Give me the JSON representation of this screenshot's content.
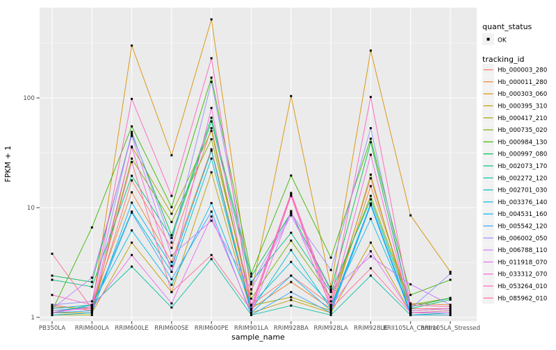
{
  "chart_data": {
    "type": "line",
    "xlabel": "sample_name",
    "ylabel": "FPKM + 1",
    "y_scale": "log10",
    "y_ticks": [
      1,
      10,
      100
    ],
    "y_tick_labels": [
      "1",
      "10",
      "100"
    ],
    "y_minor_breaks": [
      3.1623,
      31.623,
      316.23
    ],
    "ylim": [
      0.93,
      665
    ],
    "grid": "on",
    "legend_position": "right",
    "panel_bg": "#EBEBEB",
    "grid_color": "#FFFFFF",
    "axis_text_color": "#4D4D4D",
    "tick_color": "#333333",
    "point_color": "#000000",
    "categories": [
      "PB350LA",
      "RRIM600LA",
      "RRIM600LE",
      "RRIM600SE",
      "RRIM600PE",
      "RRIM901LA",
      "RRIM928BA",
      "RRIM928LA",
      "RRIM928LE",
      "RRII105LA_Control",
      "RRII105LA_Stressed"
    ],
    "series": [
      {
        "name": "Hb_000003_280",
        "color": "#F8766D",
        "values": [
          1.3,
          1.15,
          17.7,
          4.3,
          53,
          1.3,
          2.4,
          1.3,
          18.5,
          1.2,
          1.2
        ]
      },
      {
        "name": "Hb_000011_280",
        "color": "#EA8331",
        "values": [
          1.2,
          1.3,
          13.8,
          3.2,
          34,
          1.2,
          2.1,
          1.2,
          15.7,
          1.34,
          1.3
        ]
      },
      {
        "name": "Hb_000303_060",
        "color": "#D89000",
        "values": [
          1.25,
          1.2,
          300,
          30,
          520,
          1.64,
          104,
          1.9,
          270,
          8.5,
          2.6
        ]
      },
      {
        "name": "Hb_000395_310",
        "color": "#C09B00",
        "values": [
          1.1,
          1.1,
          4.8,
          1.7,
          21,
          1.1,
          1.44,
          1.1,
          4.8,
          1.1,
          1.1
        ]
      },
      {
        "name": "Hb_000417_210",
        "color": "#A3A500",
        "values": [
          1.05,
          1.05,
          36,
          8.8,
          50,
          1.28,
          1.53,
          1.15,
          20,
          1.05,
          1.05
        ]
      },
      {
        "name": "Hb_000735_020",
        "color": "#7CAE00",
        "values": [
          1.1,
          1.15,
          28,
          7.4,
          42,
          1.48,
          5.0,
          1.53,
          12.8,
          1.3,
          1.5
        ]
      },
      {
        "name": "Hb_000984_130",
        "color": "#39B600",
        "values": [
          1.15,
          6.6,
          55,
          10.1,
          153,
          2.5,
          19.6,
          3.5,
          42.5,
          1.6,
          2.2
        ]
      },
      {
        "name": "Hb_000997_080",
        "color": "#00BB4E",
        "values": [
          2.4,
          2.1,
          47,
          5.6,
          66,
          2.36,
          9.0,
          1.8,
          39.5,
          1.25,
          1.5
        ]
      },
      {
        "name": "Hb_002073_170",
        "color": "#00BF7D",
        "values": [
          2.2,
          1.9,
          19.5,
          5.3,
          61,
          2.1,
          5.9,
          1.7,
          11.9,
          1.2,
          1.45
        ]
      },
      {
        "name": "Hb_002272_120",
        "color": "#00C1A3",
        "values": [
          1.1,
          1.3,
          2.9,
          1.23,
          3.4,
          1.05,
          1.28,
          1.05,
          2.4,
          1.05,
          1.1
        ]
      },
      {
        "name": "Hb_002701_030",
        "color": "#00BFC4",
        "values": [
          1.15,
          1.25,
          9.2,
          2.6,
          28,
          1.16,
          4.1,
          1.2,
          10.9,
          1.1,
          1.15
        ]
      },
      {
        "name": "Hb_003376_140",
        "color": "#00BAE0",
        "values": [
          1.2,
          1.3,
          6.2,
          1.98,
          11,
          1.3,
          3.2,
          1.3,
          7.9,
          1.15,
          1.2
        ]
      },
      {
        "name": "Hb_004531_160",
        "color": "#00B0F6",
        "values": [
          1.05,
          1.1,
          11.1,
          2.94,
          33,
          1.1,
          2.4,
          1.15,
          10.9,
          1.1,
          1.1
        ]
      },
      {
        "name": "Hb_005542_120",
        "color": "#35A2FF",
        "values": [
          1.1,
          1.15,
          9.0,
          2.23,
          9.2,
          1.05,
          1.7,
          1.1,
          10.5,
          1.05,
          1.05
        ]
      },
      {
        "name": "Hb_006002_050",
        "color": "#9590FF",
        "values": [
          1.3,
          1.4,
          49,
          4.8,
          140,
          2.0,
          8.9,
          2.7,
          53,
          1.2,
          2.5
        ]
      },
      {
        "name": "Hb_006788_110",
        "color": "#C77CFF",
        "values": [
          1.2,
          2.3,
          45,
          3.66,
          7.6,
          1.8,
          8.5,
          1.75,
          3.6,
          2.0,
          1.3
        ]
      },
      {
        "name": "Hb_011918_070",
        "color": "#E76BF3",
        "values": [
          1.15,
          1.2,
          3.7,
          1.34,
          8.3,
          1.1,
          9.3,
          1.25,
          4.0,
          1.1,
          1.1
        ]
      },
      {
        "name": "Hb_033312_070",
        "color": "#FA62DB",
        "values": [
          1.1,
          1.25,
          35.5,
          2.6,
          81,
          1.2,
          13.2,
          1.3,
          30.3,
          1.15,
          1.2
        ]
      },
      {
        "name": "Hb_053264_010",
        "color": "#FF62BC",
        "values": [
          1.6,
          1.3,
          98,
          12.8,
          230,
          1.28,
          13.6,
          1.4,
          102,
          1.3,
          1.25
        ]
      },
      {
        "name": "Hb_085962_010",
        "color": "#FF6A98",
        "values": [
          3.8,
          1.2,
          26,
          1.7,
          3.7,
          1.16,
          12.8,
          1.2,
          2.8,
          1.1,
          1.15
        ]
      }
    ]
  },
  "legend": {
    "quant_status_title": "quant_status",
    "quant_status_items": [
      {
        "label": "OK",
        "marker": "point-marker"
      }
    ],
    "tracking_title": "tracking_id",
    "key_bg": "#F2F2F2"
  }
}
